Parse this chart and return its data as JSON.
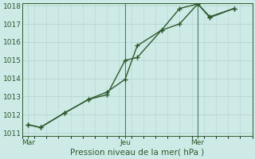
{
  "bg_color": "#ceeae6",
  "grid_color": "#b8d4d0",
  "line_color": "#2d5a2d",
  "xlabel": "Pression niveau de la mer( hPa )",
  "ylim": [
    1011,
    1018
  ],
  "yticks": [
    1011,
    1012,
    1013,
    1014,
    1015,
    1016,
    1017,
    1018
  ],
  "xtick_labels": [
    "Mar",
    "Jeu",
    "Mer"
  ],
  "xtick_positions": [
    0.5,
    8.5,
    14.5
  ],
  "xlim": [
    0,
    19
  ],
  "series1_x": [
    0.5,
    1.5,
    3.5,
    5.5,
    7.0,
    8.5,
    9.5,
    11.5,
    13.0,
    14.5,
    15.5,
    17.5
  ],
  "series1_y": [
    1011.45,
    1011.3,
    1012.1,
    1012.85,
    1013.1,
    1015.0,
    1015.15,
    1016.65,
    1017.85,
    1018.1,
    1017.4,
    1017.85
  ],
  "series2_x": [
    0.5,
    1.5,
    3.5,
    5.5,
    7.0,
    8.5,
    9.5,
    11.5,
    13.0,
    14.5,
    15.5,
    17.5
  ],
  "series2_y": [
    1011.45,
    1011.3,
    1012.1,
    1012.85,
    1013.25,
    1013.95,
    1015.8,
    1016.65,
    1017.0,
    1018.1,
    1017.35,
    1017.85
  ],
  "vline_positions": [
    8.5,
    14.5
  ],
  "vline_color": "#4a7a70",
  "marker": "+",
  "markersize": 4,
  "linewidth": 1.0,
  "xlabel_fontsize": 7.5,
  "tick_fontsize": 6.5
}
